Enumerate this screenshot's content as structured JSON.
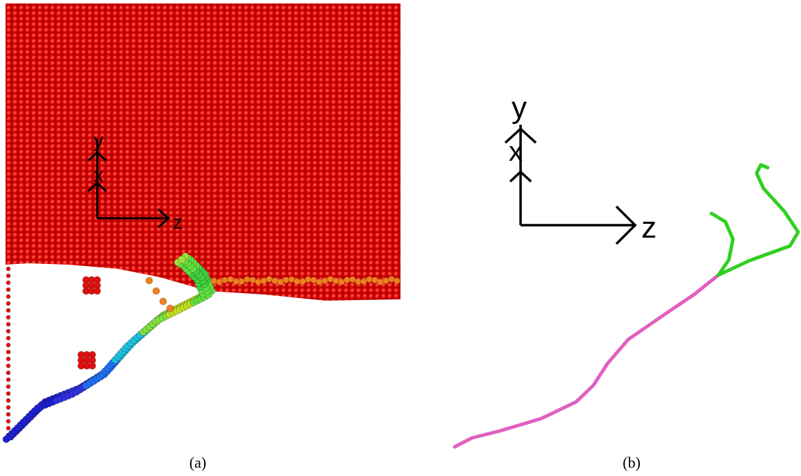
{
  "panels": [
    {
      "caption": "(a)",
      "axes": {
        "y": "y",
        "x": "x",
        "z": "z"
      }
    },
    {
      "caption": "(b)",
      "axes": {
        "y": "y",
        "x": "x",
        "z": "z"
      }
    }
  ]
}
